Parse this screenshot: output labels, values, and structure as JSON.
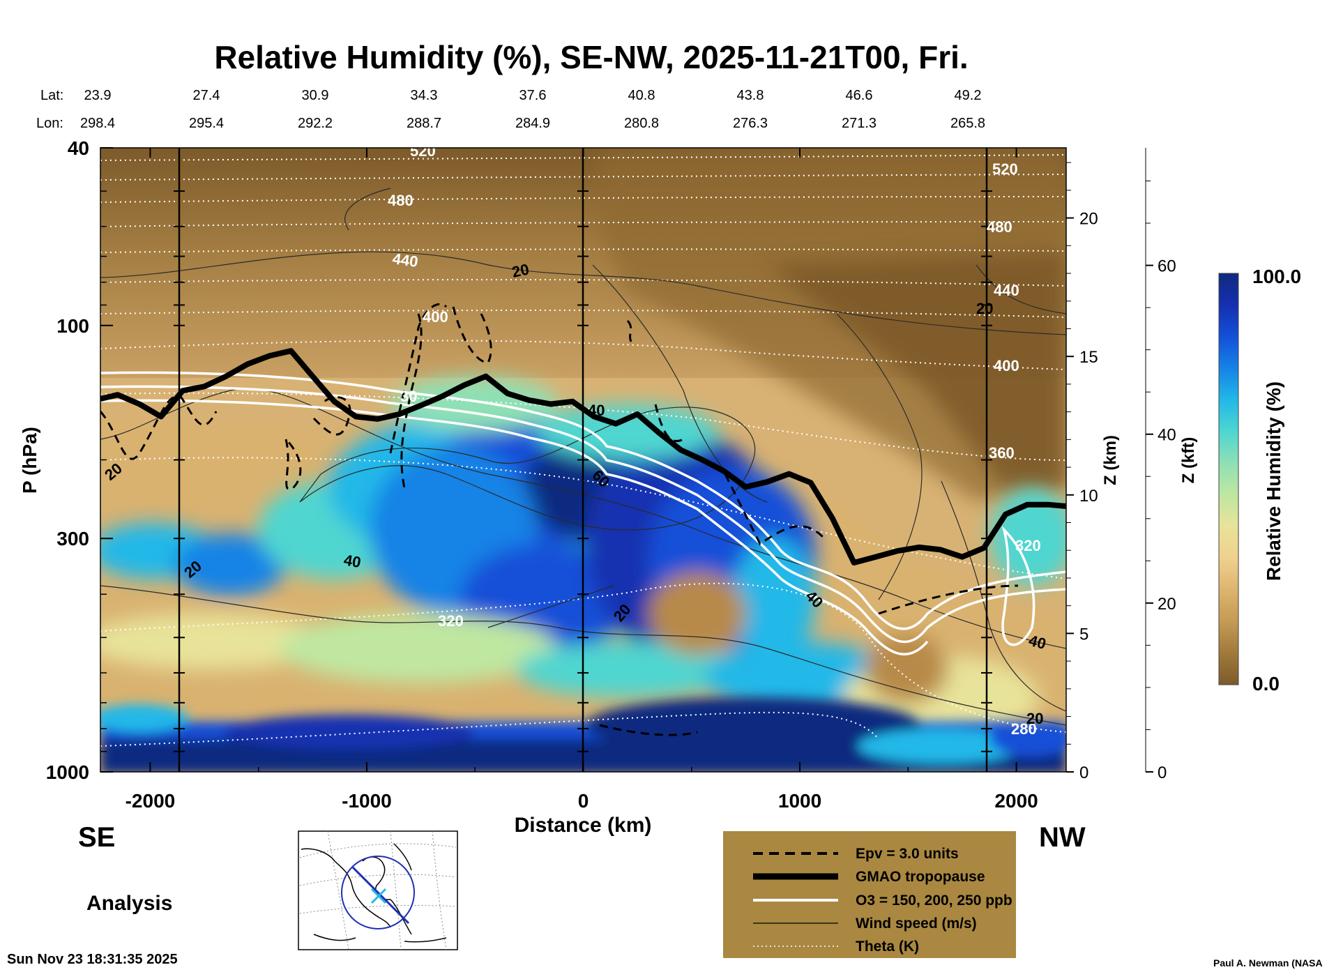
{
  "chart_data": {
    "type": "heatmap",
    "title": "Relative Humidity (%), SE-NW, 2025-11-21T00, Fri.",
    "xlabel": "Distance (km)",
    "ylabel": "P (hPa)",
    "y2label": "Z (km)",
    "y3label": "Z (kft)",
    "x_ticks": [
      "-2000",
      "-1000",
      "0",
      "1000",
      "2000"
    ],
    "x_tick_values": [
      -2000,
      -1000,
      0,
      1000,
      2000
    ],
    "xlim": [
      -2230,
      2230
    ],
    "y_ticks": [
      "40",
      "100",
      "300",
      "1000"
    ],
    "y_tick_values": [
      40,
      100,
      300,
      1000
    ],
    "ylim": [
      1000,
      40
    ],
    "y_scale": "log",
    "z_km_ticks": [
      "0",
      "5",
      "10",
      "15",
      "20"
    ],
    "z_kft_ticks": [
      "0",
      "20",
      "40",
      "60"
    ],
    "lat_label": "Lat:",
    "lon_label": "Lon:",
    "lat_values": [
      "23.9",
      "27.4",
      "30.9",
      "34.3",
      "37.6",
      "40.8",
      "43.8",
      "46.6",
      "49.2"
    ],
    "lon_values": [
      "298.4",
      "295.4",
      "292.2",
      "288.7",
      "284.9",
      "280.8",
      "276.3",
      "271.3",
      "265.8"
    ],
    "colorbar": {
      "label": "Relative Humidity (%)",
      "max_label": "100.0",
      "min_label": "0.0",
      "colors": [
        "#7d5a2a",
        "#a07a3c",
        "#c49a55",
        "#ddb56e",
        "#efd08f",
        "#e8e39a",
        "#bfe7a0",
        "#8fe0b5",
        "#4fd6d0",
        "#22b8e8",
        "#1583e6",
        "#1450d8",
        "#1430b0",
        "#102a80"
      ]
    },
    "tropopause": {
      "x": [
        -2230,
        -2150,
        -2050,
        -1950,
        -1850,
        -1750,
        -1650,
        -1550,
        -1450,
        -1350,
        -1250,
        -1150,
        -1050,
        -950,
        -850,
        -750,
        -650,
        -550,
        -450,
        -350,
        -250,
        -150,
        -50,
        50,
        150,
        250,
        350,
        450,
        550,
        650,
        750,
        850,
        950,
        1050,
        1150,
        1250,
        1350,
        1450,
        1550,
        1650,
        1750,
        1850,
        1950,
        2050,
        2150,
        2230
      ],
      "p_hPa": [
        146,
        143,
        150,
        160,
        140,
        137,
        130,
        122,
        117,
        114,
        130,
        148,
        160,
        162,
        158,
        151,
        144,
        136,
        130,
        142,
        147,
        150,
        148,
        160,
        166,
        158,
        174,
        190,
        200,
        212,
        230,
        224,
        215,
        225,
        270,
        340,
        330,
        320,
        314,
        318,
        330,
        315,
        265,
        252,
        252,
        254
      ]
    },
    "legend": {
      "items": [
        "Epv = 3.0 units",
        "GMAO tropopause",
        "O3 = 150, 200, 250 ppb",
        "Wind speed (m/s)",
        "Theta (K)"
      ],
      "position": "bottom-center",
      "background": "#aa8841"
    },
    "theta_labels": [
      "520",
      "480",
      "440",
      "400",
      "360",
      "320",
      "280",
      "520",
      "480",
      "440",
      "400",
      "320"
    ],
    "wind_labels": [
      "20",
      "20",
      "20",
      "20",
      "40",
      "60",
      "20",
      "40",
      "40",
      "20",
      "20"
    ],
    "other_labels": [
      "40",
      "30"
    ]
  },
  "footer": {
    "left_direction": "SE",
    "right_direction": "NW",
    "mode": "Analysis",
    "timestamp": "Sun Nov 23 18:31:35 2025",
    "credit": "Paul A. Newman (NASA"
  }
}
